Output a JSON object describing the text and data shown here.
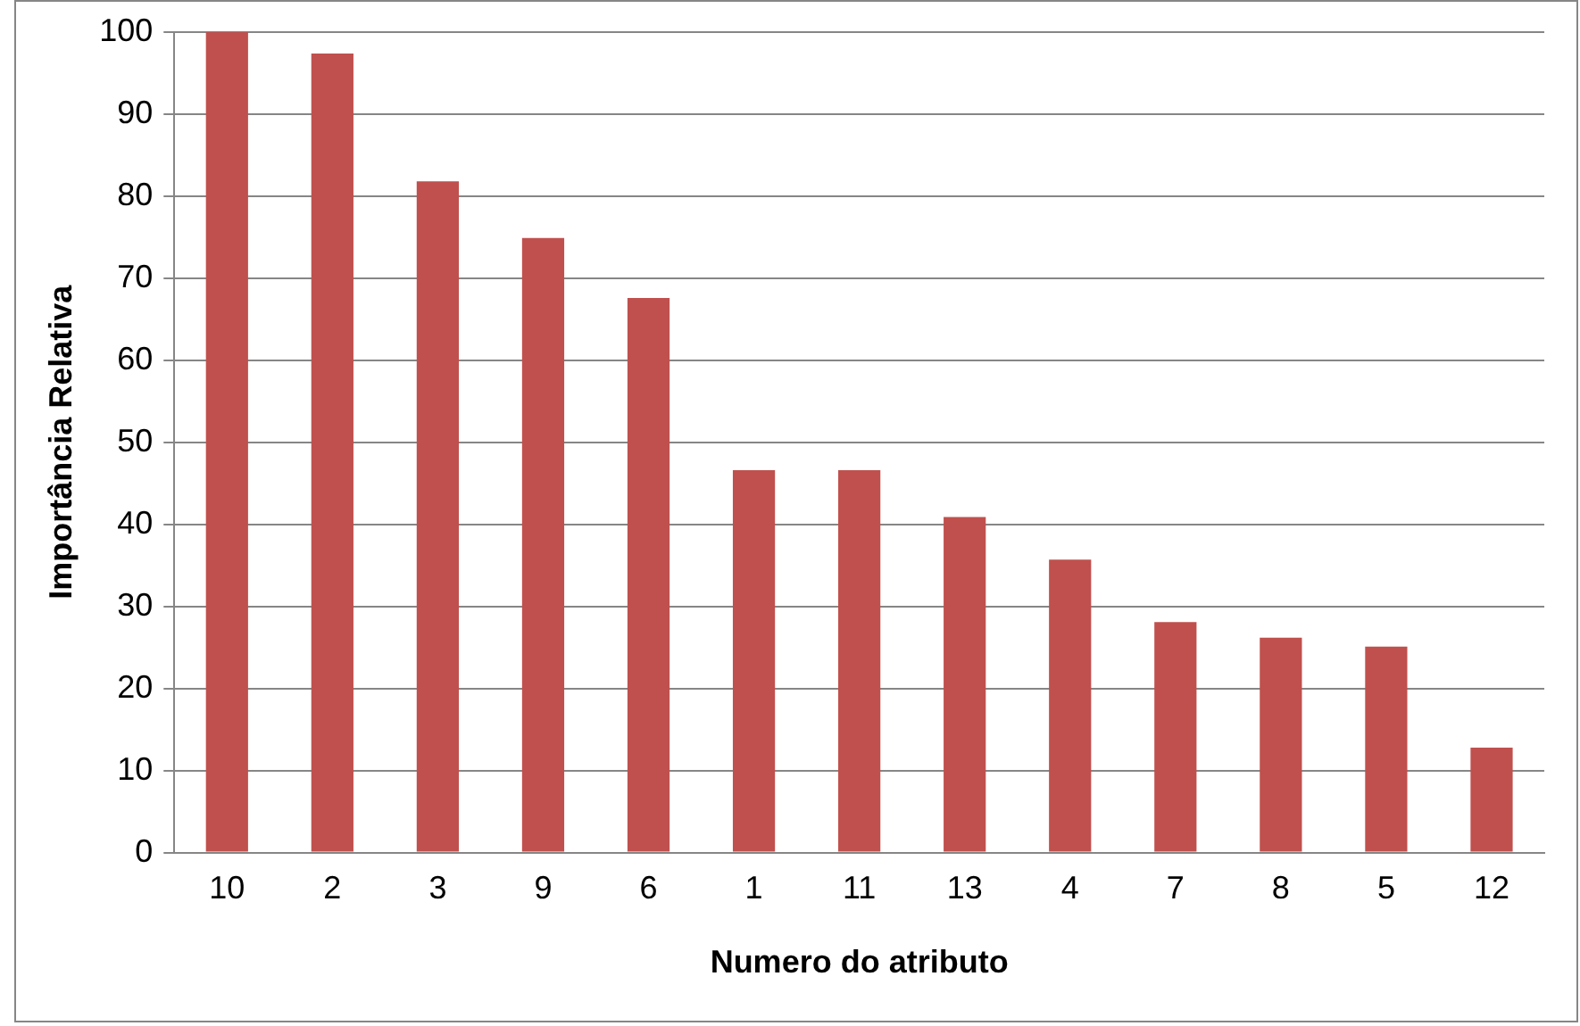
{
  "chart_data": {
    "type": "bar",
    "xlabel": "Numero do atributo",
    "ylabel": "Importância Relativa",
    "categories": [
      "10",
      "2",
      "3",
      "9",
      "6",
      "1",
      "11",
      "13",
      "4",
      "7",
      "8",
      "5",
      "12"
    ],
    "values": [
      100,
      97.4,
      81.8,
      74.9,
      67.6,
      46.6,
      46.6,
      40.9,
      35.7,
      28.1,
      26.2,
      25.1,
      12.8
    ],
    "color": "#c0504d",
    "ylim": [
      0,
      100
    ],
    "yticks": [
      0,
      10,
      20,
      30,
      40,
      50,
      60,
      70,
      80,
      90,
      100
    ],
    "grid": "y",
    "legend": false
  }
}
